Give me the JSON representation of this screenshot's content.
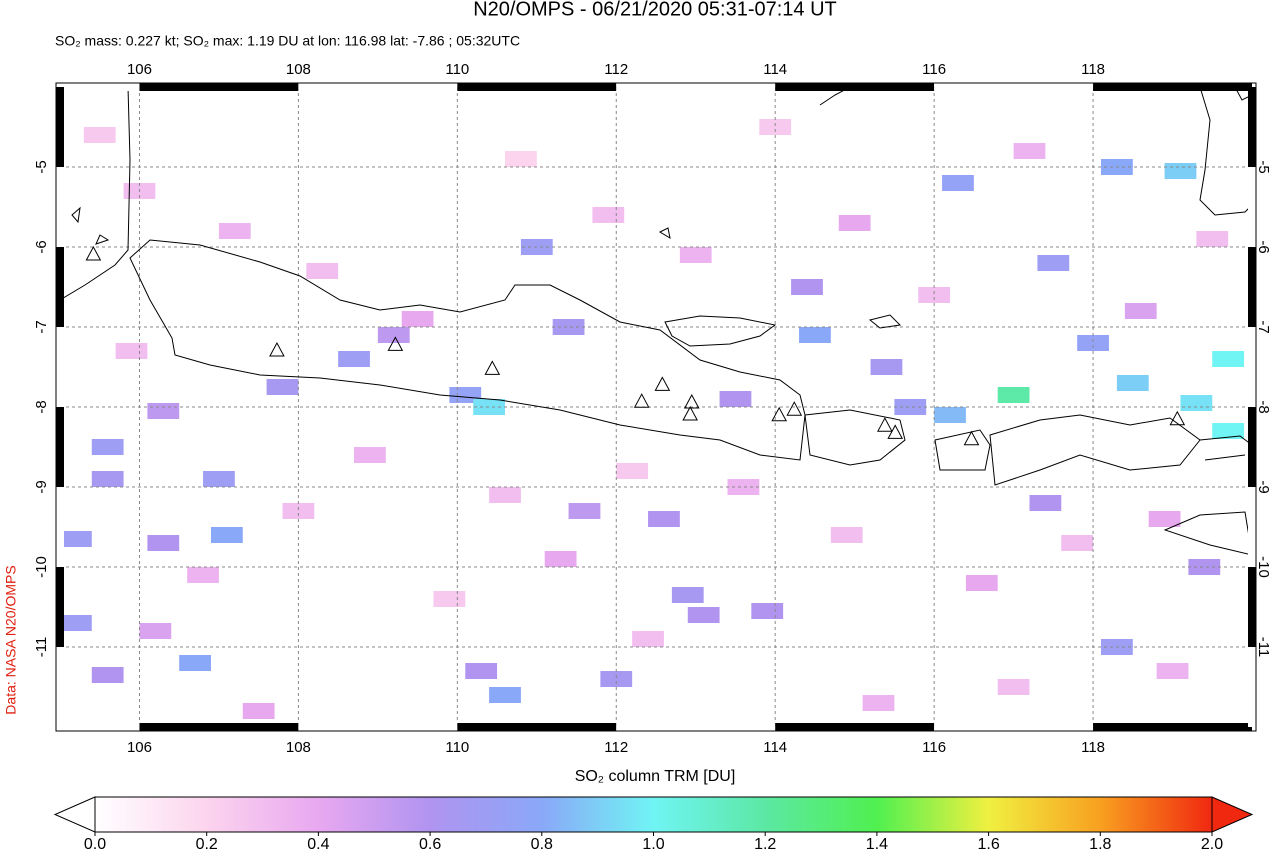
{
  "header": {
    "title": "N20/OMPS - 06/21/2020 05:31-07:14 UT",
    "subtitle": "SO₂ mass: 0.227 kt; SO₂ max: 1.19 DU at lon: 116.98 lat: -7.86 ; 05:32UTC"
  },
  "map": {
    "xlim": [
      105,
      120
    ],
    "ylim": [
      -12,
      -4
    ],
    "xticks": [
      106,
      108,
      110,
      112,
      114,
      116,
      118
    ],
    "yticks": [
      -5,
      -6,
      -7,
      -8,
      -9,
      -10,
      -11
    ],
    "volcanoes": {
      "lon": [
        105.42,
        107.73,
        109.22,
        110.44,
        112.32,
        112.58,
        112.95,
        112.93,
        114.05,
        114.24,
        115.38,
        115.51,
        116.47,
        119.06
      ],
      "lat": [
        -6.1,
        -7.3,
        -7.23,
        -7.53,
        -7.94,
        -7.73,
        -7.95,
        -8.1,
        -8.11,
        -8.04,
        -8.24,
        -8.33,
        -8.41,
        -8.16
      ]
    },
    "pixels": {
      "lon": [
        109.2,
        108.7,
        107.8,
        110.1,
        110.4,
        106.3,
        105.6,
        105.6,
        107.0,
        107.1,
        106.3,
        105.2,
        105.2,
        106.2,
        106.7,
        105.6,
        110.3,
        110.6,
        112.0,
        113.1,
        112.9,
        113.9,
        112.6,
        111.6,
        114.4,
        111.0,
        111.4,
        113.5,
        114.5,
        117.0,
        116.3,
        118.3,
        119.1,
        118.5,
        119.3,
        119.7,
        119.7,
        117.5,
        118.0,
        115.4,
        115.7,
        116.2,
        117.4,
        118.3,
        119.4,
        105.5,
        106.0,
        107.2,
        108.3,
        109.5,
        110.8,
        111.9,
        113.0,
        114.0,
        115.0,
        116.0,
        117.2,
        118.6,
        119.5,
        106.8,
        108.0,
        109.9,
        111.3,
        112.4,
        113.6,
        114.9,
        116.6,
        117.8,
        119.0,
        105.9,
        107.5,
        108.9,
        110.6,
        112.2,
        115.3,
        117.0,
        118.9
      ],
      "lat": [
        -7.1,
        -7.4,
        -7.75,
        -7.85,
        -8.0,
        -8.05,
        -8.5,
        -8.9,
        -8.9,
        -9.6,
        -9.7,
        -9.65,
        -10.7,
        -10.8,
        -11.2,
        -11.35,
        -11.3,
        -11.6,
        -11.4,
        -10.6,
        -10.35,
        -10.55,
        -9.4,
        -9.3,
        -6.5,
        -6.0,
        -7.0,
        -7.9,
        -7.1,
        -7.85,
        -5.2,
        -5.0,
        -5.05,
        -7.7,
        -7.95,
        -7.4,
        -8.3,
        -6.2,
        -7.2,
        -7.5,
        -8.0,
        -8.1,
        -9.2,
        -11.0,
        -10.0,
        -4.6,
        -5.3,
        -5.8,
        -6.3,
        -6.9,
        -4.9,
        -5.6,
        -6.1,
        -4.5,
        -5.7,
        -6.6,
        -4.8,
        -6.8,
        -5.9,
        -10.1,
        -9.3,
        -10.4,
        -9.9,
        -10.9,
        -9.0,
        -9.6,
        -10.2,
        -9.7,
        -11.3,
        -7.3,
        -11.8,
        -8.6,
        -9.1,
        -8.8,
        -11.7,
        -11.5,
        -9.4
      ],
      "values": [
        0.55,
        0.7,
        0.65,
        0.75,
        0.95,
        0.55,
        0.7,
        0.65,
        0.7,
        0.8,
        0.6,
        0.7,
        0.7,
        0.45,
        0.8,
        0.6,
        0.6,
        0.8,
        0.65,
        0.6,
        0.65,
        0.6,
        0.6,
        0.55,
        0.6,
        0.7,
        0.65,
        0.6,
        0.8,
        1.19,
        0.75,
        0.8,
        0.9,
        0.9,
        0.95,
        1.0,
        1.0,
        0.7,
        0.75,
        0.65,
        0.7,
        0.85,
        0.6,
        0.7,
        0.6,
        0.25,
        0.3,
        0.35,
        0.3,
        0.4,
        0.2,
        0.3,
        0.35,
        0.25,
        0.4,
        0.3,
        0.35,
        0.45,
        0.3,
        0.35,
        0.3,
        0.25,
        0.4,
        0.3,
        0.35,
        0.3,
        0.4,
        0.3,
        0.35,
        0.3,
        0.4,
        0.35,
        0.3,
        0.25,
        0.35,
        0.3,
        0.4
      ]
    }
  },
  "colorbar": {
    "label": "SO₂ column TRM [DU]",
    "lim": [
      0,
      2
    ],
    "ticks": [
      {
        "value": 0,
        "label": "0.0"
      },
      {
        "value": 0.2,
        "label": "0.2"
      },
      {
        "value": 0.4,
        "label": "0.4"
      },
      {
        "value": 0.6,
        "label": "0.6"
      },
      {
        "value": 0.8,
        "label": "0.8"
      },
      {
        "value": 1,
        "label": "1.0"
      },
      {
        "value": 1.2,
        "label": "1.2"
      },
      {
        "value": 1.4,
        "label": "1.4"
      },
      {
        "value": 1.6,
        "label": "1.6"
      },
      {
        "value": 1.8,
        "label": "1.8"
      },
      {
        "value": 2,
        "label": "2.0"
      }
    ],
    "colors": [
      "#ffffff",
      "#fcd4ee",
      "#e8a8f0",
      "#b094f0",
      "#8aa8f8",
      "#70f4f4",
      "#5ce8a4",
      "#50f050",
      "#f0f040",
      "#f8a020",
      "#f02810"
    ]
  },
  "credit": "Data: NASA N20/OMPS"
}
